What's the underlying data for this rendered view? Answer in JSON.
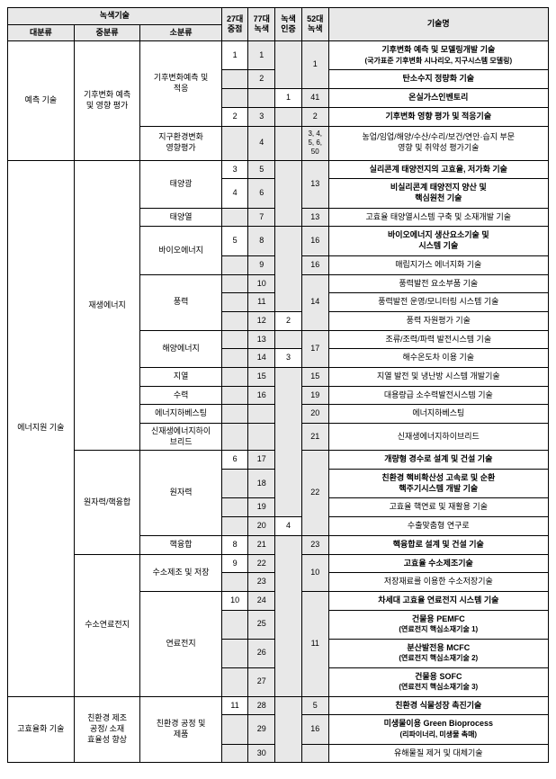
{
  "headers": {
    "greenTech": "녹색기술",
    "cat1": "대분류",
    "cat2": "중분류",
    "cat3": "소분류",
    "col27": "27대\n중점",
    "col77": "77대\n녹색",
    "colCert": "녹색\n인증",
    "col52": "52대\n녹색",
    "techName": "기술명"
  },
  "cat1": {
    "predict": "예측 기술",
    "energy": "에너지원 기술",
    "efficiency": "고효율화 기술"
  },
  "cat2": {
    "climate": "기후변화 예측\n및 영향 평가",
    "renewable": "재생에너지",
    "nuclear": "원자력/핵융합",
    "hydrogenFuel": "수소연료전지",
    "ecoProcess": "친환경 제조\n공정/ 소재\n효율성 향상"
  },
  "cat3": {
    "climatePredict": "기후변화예측 및\n적응",
    "globalEnv": "지구환경변화\n영향평가",
    "solar": "태양광",
    "solarHeat": "태양열",
    "bio": "바이오에너지",
    "wind": "풍력",
    "ocean": "해양에너지",
    "geo": "지열",
    "hydro": "수력",
    "harvest": "에너지하베스팅",
    "hybrid": "신재생에너지하이\n브리드",
    "nuclearPower": "원자력",
    "fusion": "핵융합",
    "hydrogenStore": "수소제조 및 저장",
    "fuelCell": "연료전지",
    "ecoProduct": "친환경 공정 및\n제품"
  },
  "rows": [
    {
      "c27": "1",
      "c77": "1",
      "cert": "",
      "c52": "",
      "name": "기후변화 예측 및 모델링개발 기술",
      "sub": "(국가표준 기후변화 시나리오, 지구시스템 모델링)",
      "bold": true
    },
    {
      "c27": "",
      "c77": "2",
      "cert": "1",
      "c52": "",
      "name": "탄소수지 정량화 기술",
      "bold": true
    },
    {
      "c27": "",
      "c77": "",
      "cert": "",
      "c52": "41",
      "name": "온실가스인벤토리",
      "bold": true
    },
    {
      "c27": "2",
      "c77": "3",
      "cert": "",
      "c52": "2",
      "name": "기후변화 영향 평가 및 적응기술",
      "bold": true
    },
    {
      "c27": "",
      "c77": "4",
      "cert": "",
      "c52": "3, 4,\n5, 6,\n50",
      "name": "농업/임업/해양/수산/수리/보건/연안·습지 부문\n영향 및 취약성 평가기술"
    },
    {
      "c27": "3",
      "c77": "5",
      "cert": "",
      "c52": "",
      "name": "실리콘계 태양전지의 고효율, 저가화 기술",
      "bold": true
    },
    {
      "c27": "4",
      "c77": "6",
      "cert": "",
      "c52": "",
      "name": "비실리콘계 태양전지 양산 및\n핵심원천 기술",
      "bold": true
    },
    {
      "c27": "",
      "c77": "7",
      "cert": "",
      "c52": "13",
      "name": "고효율 태양열시스템 구축 및 소재개발 기술"
    },
    {
      "c27": "5",
      "c77": "8",
      "cert": "",
      "c52": "16",
      "name": "바이오에너지 생산요소기술 및\n시스템 기술",
      "bold": true
    },
    {
      "c27": "",
      "c77": "9",
      "cert": "",
      "c52": "16",
      "name": "매립지가스 에너지화 기술"
    },
    {
      "c27": "",
      "c77": "10",
      "cert": "",
      "c52": "",
      "name": "풍력발전 요소부품 기술"
    },
    {
      "c27": "",
      "c77": "11",
      "cert": "",
      "c52": "",
      "name": "풍력발전 운영/모니터링 시스템 기술"
    },
    {
      "c27": "",
      "c77": "12",
      "cert": "2",
      "c52": "",
      "name": "풍력 자원평가 기술"
    },
    {
      "c27": "",
      "c77": "13",
      "cert": "",
      "c52": "",
      "name": "조류/조력/파력 발전시스템 기술"
    },
    {
      "c27": "",
      "c77": "14",
      "cert": "3",
      "c52": "",
      "name": "해수온도차 이용 기술"
    },
    {
      "c27": "",
      "c77": "15",
      "cert": "",
      "c52": "15",
      "name": "지열 발전 및 냉난방 시스템 개발기술"
    },
    {
      "c27": "",
      "c77": "16",
      "cert": "",
      "c52": "19",
      "name": "대용량급 소수력발전시스템 기술"
    },
    {
      "c27": "",
      "c77": "",
      "cert": "",
      "c52": "20",
      "name": "에너지하베스팅"
    },
    {
      "c27": "",
      "c77": "",
      "cert": "",
      "c52": "21",
      "name": "신재생에너지하이브리드"
    },
    {
      "c27": "6",
      "c77": "17",
      "cert": "",
      "c52": "",
      "name": "개량형 경수로 설계 및 건설 기술",
      "bold": true
    },
    {
      "c27": "",
      "c77": "18",
      "cert": "",
      "c52": "",
      "name": "친환경 핵비확산성 고속로 및 순환\n핵주기시스템 개발 기술",
      "bold": true
    },
    {
      "c27": "",
      "c77": "19",
      "cert": "",
      "c52": "",
      "name": "고효율 핵연료 및 재활용 기술"
    },
    {
      "c27": "",
      "c77": "20",
      "cert": "4",
      "c52": "",
      "name": "수출맞춤형 연구로"
    },
    {
      "c27": "8",
      "c77": "21",
      "cert": "",
      "c52": "23",
      "name": "핵융합로 설계 및 건설 기술",
      "bold": true
    },
    {
      "c27": "9",
      "c77": "22",
      "cert": "",
      "c52": "",
      "name": "고효율 수소제조기술",
      "bold": true
    },
    {
      "c27": "",
      "c77": "23",
      "cert": "",
      "c52": "",
      "name": "저장재료를 이용한 수소저장기술"
    },
    {
      "c27": "10",
      "c77": "24",
      "cert": "",
      "c52": "",
      "name": "차세대 고효율 연료전지 시스템 기술",
      "bold": true
    },
    {
      "c27": "",
      "c77": "25",
      "cert": "",
      "c52": "",
      "name": "건물용 PEMFC",
      "sub": "(연료전지 핵심소재기술 1)",
      "bold": true
    },
    {
      "c27": "",
      "c77": "26",
      "cert": "",
      "c52": "",
      "name": "분산발전용 MCFC",
      "sub": "(연료전지 핵심소재기술 2)",
      "bold": true
    },
    {
      "c27": "",
      "c77": "27",
      "cert": "",
      "c52": "",
      "name": "건물용 SOFC",
      "sub": "(연료전지 핵심소재기술 3)",
      "bold": true
    },
    {
      "c27": "11",
      "c77": "28",
      "cert": "",
      "c52": "5",
      "name": "친환경 식물성장 촉진기술",
      "bold": true
    },
    {
      "c27": "",
      "c77": "29",
      "cert": "",
      "c52": "16",
      "name": "미생물이용 Green Bioprocess",
      "sub": "(리파이너리, 미생물 촉매)",
      "bold": true
    },
    {
      "c27": "",
      "c77": "30",
      "cert": "",
      "c52": "",
      "name": "유해물질 제거 및 대체기술"
    }
  ],
  "merges": {
    "c52_1": "1",
    "c52_13": "13",
    "c52_14": "14",
    "c52_17": "17",
    "c52_22": "22",
    "c52_10": "10",
    "c52_11": "11"
  }
}
